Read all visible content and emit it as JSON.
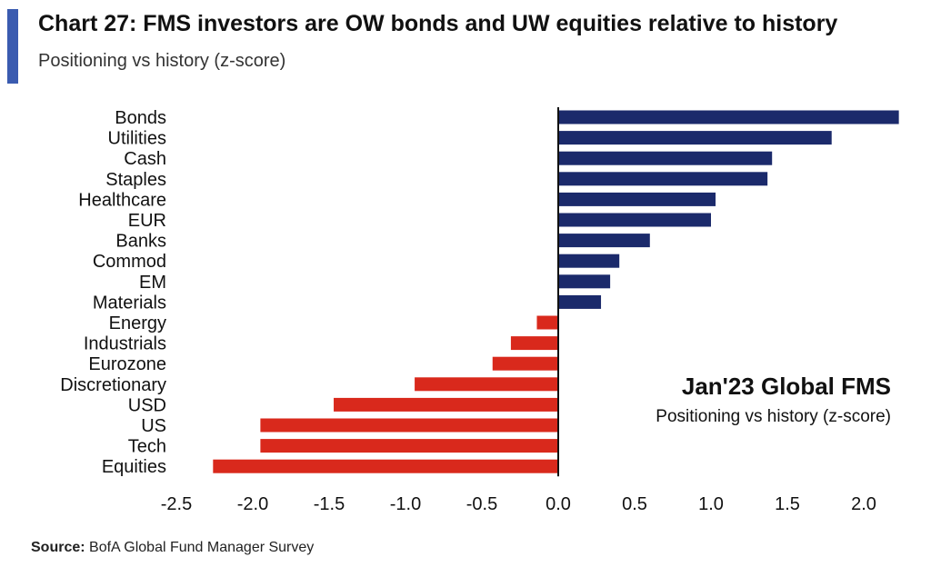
{
  "header": {
    "title": "Chart 27: FMS investors are OW bonds and UW equities relative to history",
    "subtitle": "Positioning vs history (z-score)"
  },
  "annotation": {
    "title": "Jan'23 Global FMS",
    "subtitle": "Positioning vs history (z-score)"
  },
  "source": {
    "label": "Source:",
    "text": "BofA Global Fund Manager Survey"
  },
  "colors": {
    "positive": "#1b2a6b",
    "negative": "#d9291c",
    "accent": "#3a5bb0"
  },
  "chart_data": {
    "type": "bar",
    "orientation": "horizontal",
    "categories": [
      "Bonds",
      "Utilities",
      "Cash",
      "Staples",
      "Healthcare",
      "EUR",
      "Banks",
      "Commod",
      "EM",
      "Materials",
      "Energy",
      "Industrials",
      "Eurozone",
      "Discretionary",
      "USD",
      "US",
      "Tech",
      "Equities"
    ],
    "values": [
      2.23,
      1.79,
      1.4,
      1.37,
      1.03,
      1.0,
      0.6,
      0.4,
      0.34,
      0.28,
      -0.14,
      -0.31,
      -0.43,
      -0.94,
      -1.47,
      -1.95,
      -1.95,
      -2.26
    ],
    "xlim": [
      -2.5,
      2.2
    ],
    "xticks": [
      "-2.5",
      "-2.0",
      "-1.5",
      "-1.0",
      "-0.5",
      "0.0",
      "0.5",
      "1.0",
      "1.5",
      "2.0"
    ],
    "xtick_values": [
      -2.5,
      -2.0,
      -1.5,
      -1.0,
      -0.5,
      0.0,
      0.5,
      1.0,
      1.5,
      2.0
    ],
    "grid": false,
    "legend": "none"
  }
}
